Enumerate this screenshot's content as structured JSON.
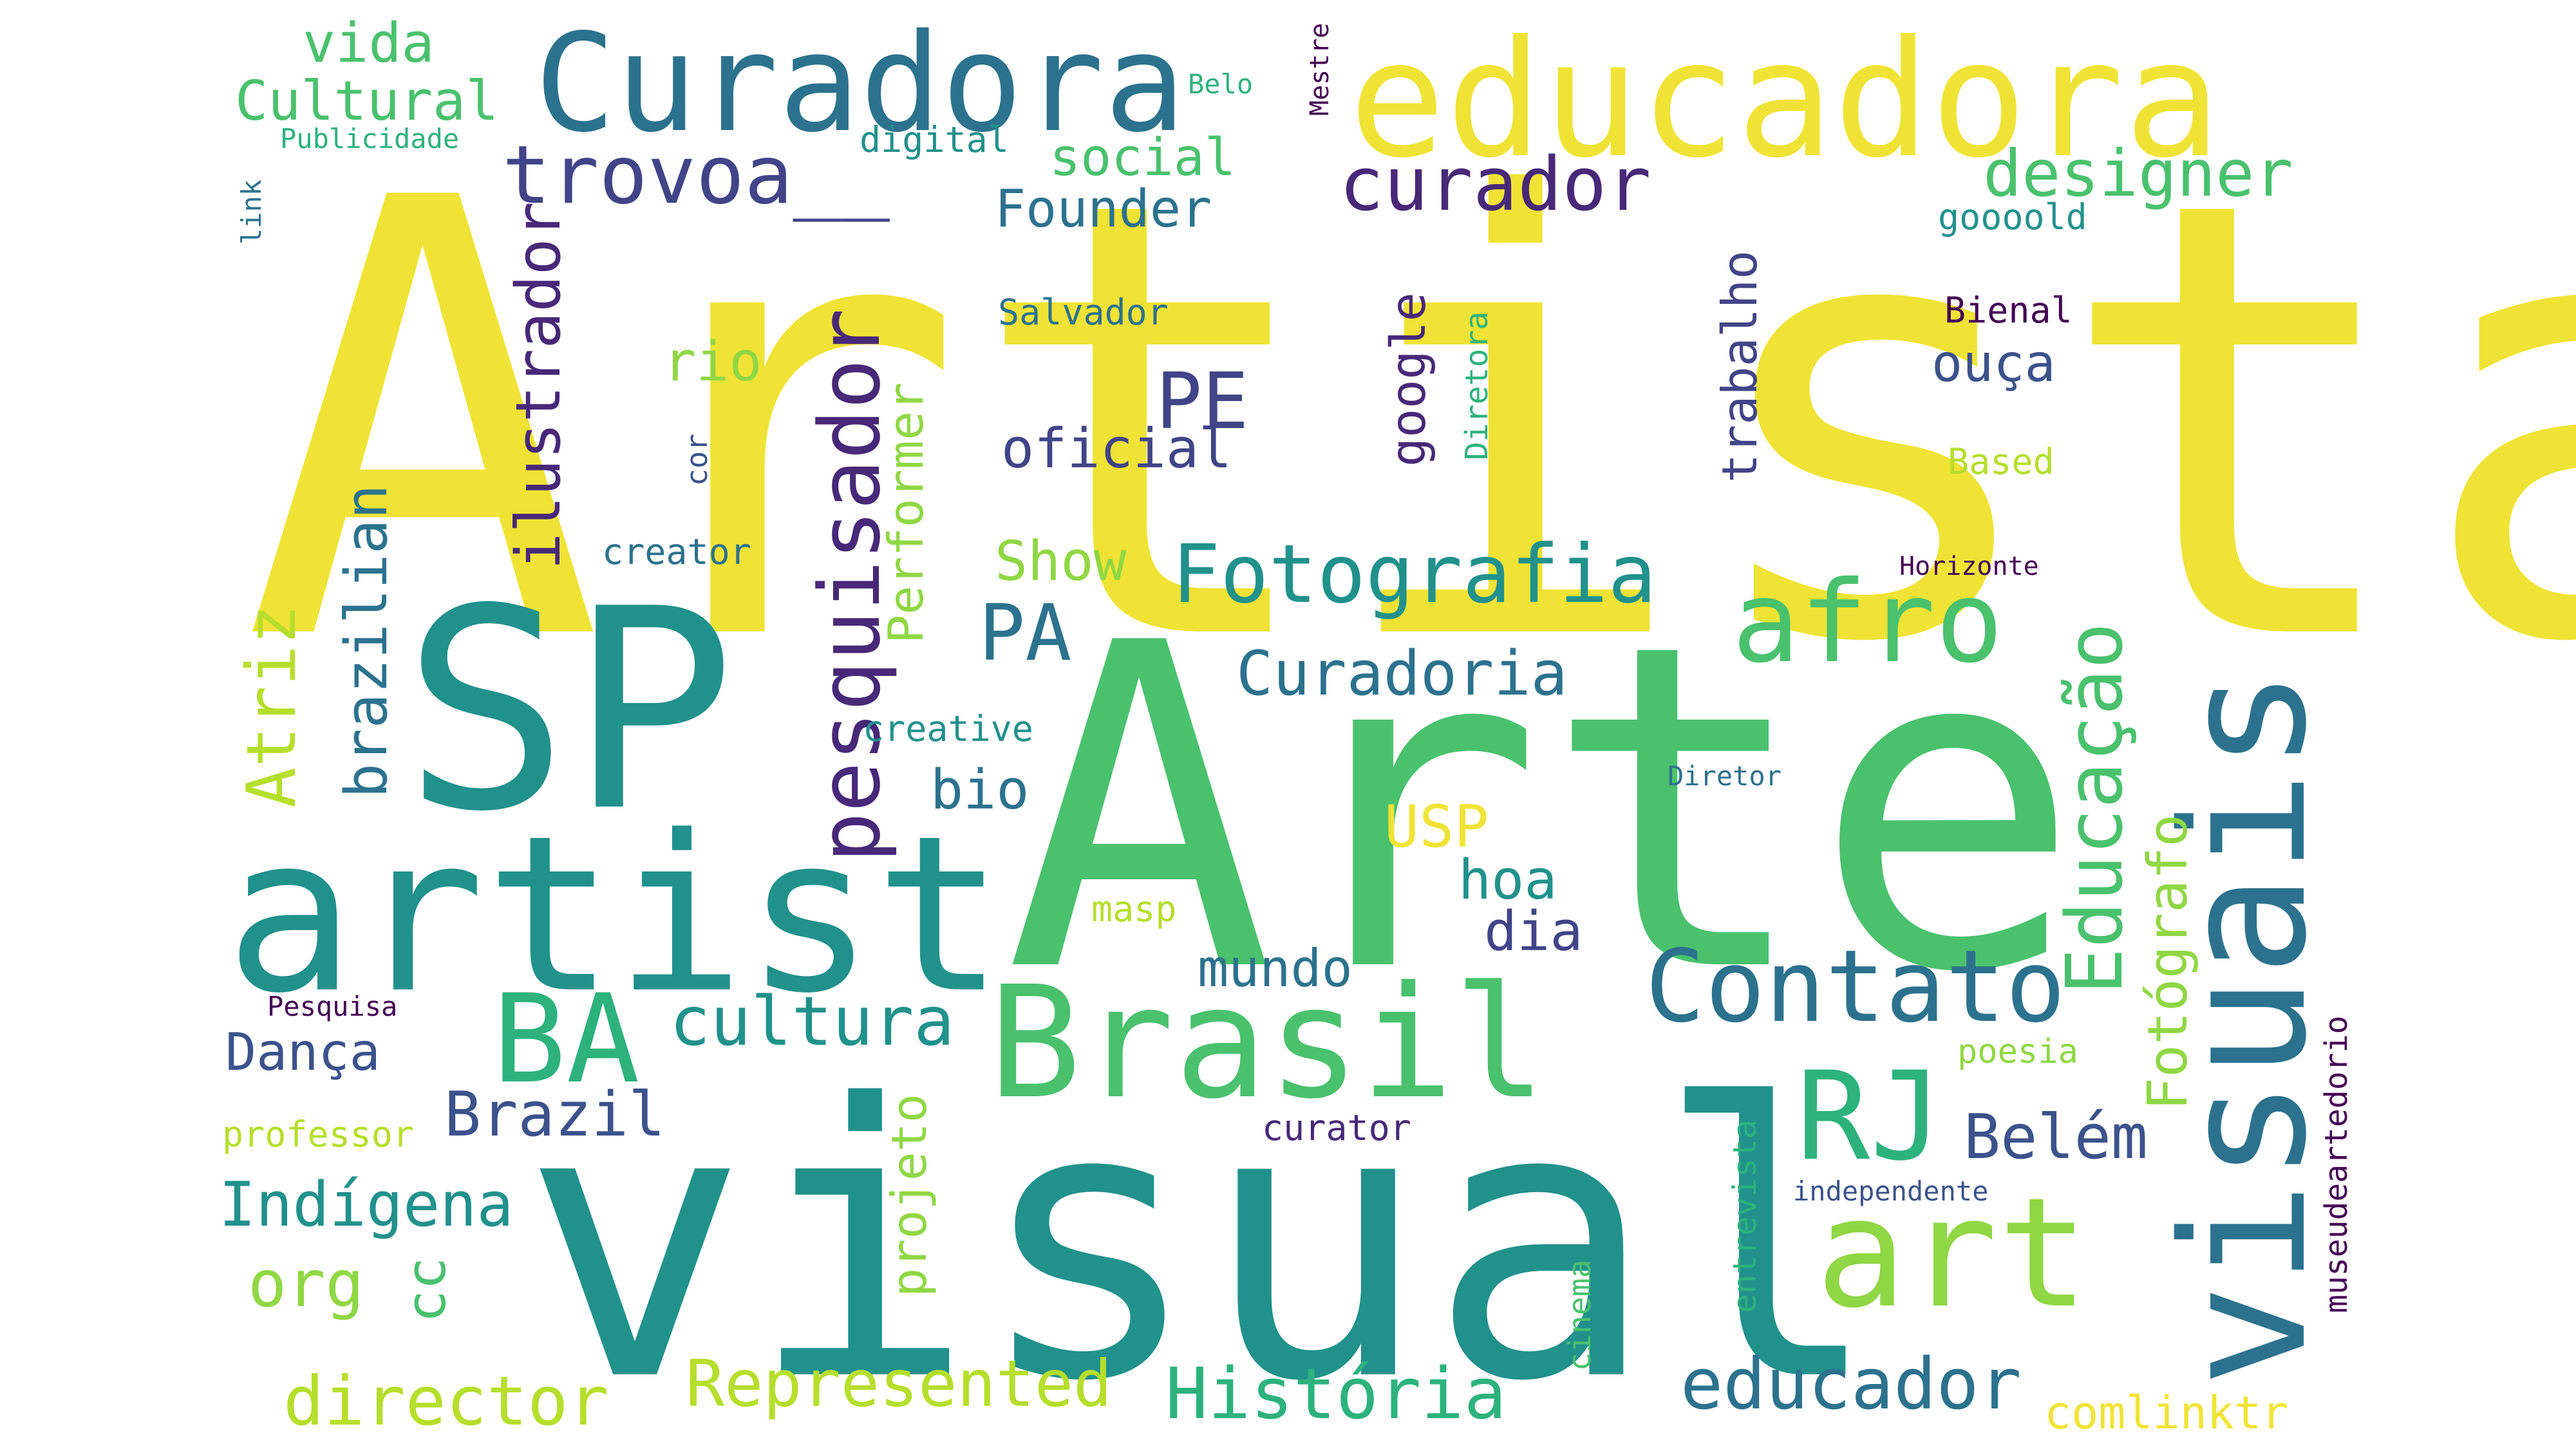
{
  "palette": {
    "yellow": "#f0e335",
    "yellow_green": "#b6de2b",
    "light_green": "#8fd744",
    "green": "#4ac16d",
    "teal_green": "#2db27d",
    "teal": "#21918c",
    "steel_blue": "#2c728e",
    "blue": "#3b528b",
    "indigo": "#414487",
    "purple": "#482878",
    "dark_purple": "#440154"
  },
  "words": [
    {
      "text": "Artista",
      "color": "yellow"
    },
    {
      "text": "Arte",
      "color": "green"
    },
    {
      "text": "visual",
      "color": "teal"
    },
    {
      "text": "SP",
      "color": "teal"
    },
    {
      "text": "artist",
      "color": "teal"
    },
    {
      "text": "visuais",
      "color": "steel_blue"
    },
    {
      "text": "educadora",
      "color": "yellow"
    },
    {
      "text": "Curadora",
      "color": "steel_blue"
    },
    {
      "text": "Brasil",
      "color": "green"
    },
    {
      "text": "art",
      "color": "light_green"
    },
    {
      "text": "BA",
      "color": "teal_green"
    },
    {
      "text": "RJ",
      "color": "teal_green"
    },
    {
      "text": "afro",
      "color": "green"
    },
    {
      "text": "Contato",
      "color": "steel_blue"
    },
    {
      "text": "curador",
      "color": "purple"
    },
    {
      "text": "Fotografia",
      "color": "teal"
    },
    {
      "text": "pesquisador",
      "color": "purple"
    },
    {
      "text": "trovoa__",
      "color": "indigo"
    },
    {
      "text": "PE",
      "color": "indigo"
    },
    {
      "text": "PA",
      "color": "steel_blue"
    },
    {
      "text": "designer",
      "color": "green"
    },
    {
      "text": "Educação",
      "color": "green"
    },
    {
      "text": "Curadoria",
      "color": "steel_blue"
    },
    {
      "text": "cultura",
      "color": "teal"
    },
    {
      "text": "História",
      "color": "teal_green"
    },
    {
      "text": "educador",
      "color": "steel_blue"
    },
    {
      "text": "Represented",
      "color": "yellow_green"
    },
    {
      "text": "director",
      "color": "yellow_green"
    },
    {
      "text": "Atriz",
      "color": "yellow_green"
    },
    {
      "text": "brazilian",
      "color": "steel_blue"
    },
    {
      "text": "ilustrador",
      "color": "purple"
    },
    {
      "text": "Indígena",
      "color": "teal"
    },
    {
      "text": "Brazil",
      "color": "blue"
    },
    {
      "text": "Belém",
      "color": "blue"
    },
    {
      "text": "Fotógrafo",
      "color": "light_green"
    },
    {
      "text": "org",
      "color": "light_green"
    },
    {
      "text": "Cultural",
      "color": "green"
    },
    {
      "text": "vida",
      "color": "green"
    },
    {
      "text": "social",
      "color": "green"
    },
    {
      "text": "Founder",
      "color": "steel_blue"
    },
    {
      "text": "oficial",
      "color": "indigo"
    },
    {
      "text": "rio",
      "color": "light_green"
    },
    {
      "text": "Show",
      "color": "light_green"
    },
    {
      "text": "USP",
      "color": "yellow"
    },
    {
      "text": "bio",
      "color": "steel_blue"
    },
    {
      "text": "hoa",
      "color": "teal"
    },
    {
      "text": "dia",
      "color": "indigo"
    },
    {
      "text": "mundo",
      "color": "steel_blue"
    },
    {
      "text": "Dança",
      "color": "blue"
    },
    {
      "text": "ouça",
      "color": "blue"
    },
    {
      "text": "google",
      "color": "purple"
    },
    {
      "text": "trabalho",
      "color": "indigo"
    },
    {
      "text": "Performer",
      "color": "light_green"
    },
    {
      "text": "projeto",
      "color": "light_green"
    },
    {
      "text": "cc",
      "color": "green"
    },
    {
      "text": "comlinktr",
      "color": "yellow"
    },
    {
      "text": "museudeartedorio",
      "color": "dark_purple"
    },
    {
      "text": "entrevista",
      "color": "teal_green"
    },
    {
      "text": "cinema",
      "color": "green"
    },
    {
      "text": "Diretora",
      "color": "teal_green"
    },
    {
      "text": "digital",
      "color": "teal"
    },
    {
      "text": "Salvador",
      "color": "steel_blue"
    },
    {
      "text": "creator",
      "color": "steel_blue"
    },
    {
      "text": "creative",
      "color": "teal"
    },
    {
      "text": "masp",
      "color": "yellow_green"
    },
    {
      "text": "curator",
      "color": "purple"
    },
    {
      "text": "professor",
      "color": "yellow_green"
    },
    {
      "text": "Pesquisa",
      "color": "dark_purple"
    },
    {
      "text": "poesia",
      "color": "light_green"
    },
    {
      "text": "independente",
      "color": "blue"
    },
    {
      "text": "Diretor",
      "color": "steel_blue"
    },
    {
      "text": "Horizonte",
      "color": "dark_purple"
    },
    {
      "text": "Based",
      "color": "yellow_green"
    },
    {
      "text": "Bienal",
      "color": "dark_purple"
    },
    {
      "text": "goooold",
      "color": "teal"
    },
    {
      "text": "Mestre",
      "color": "dark_purple"
    },
    {
      "text": "Belo",
      "color": "teal_green"
    },
    {
      "text": "Publicidade",
      "color": "teal_green"
    },
    {
      "text": "link",
      "color": "steel_blue"
    },
    {
      "text": "cor",
      "color": "blue"
    }
  ]
}
